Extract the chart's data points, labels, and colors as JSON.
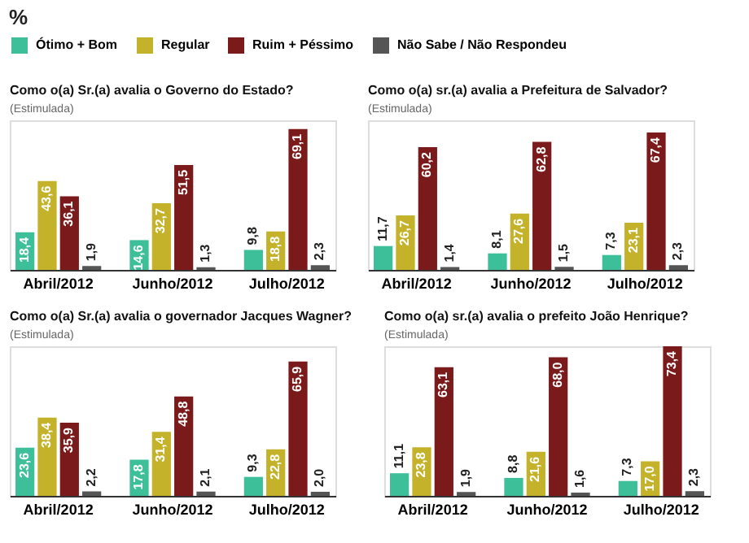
{
  "chart_data": [
    {
      "type": "bar",
      "title": "Como o(a) Sr.(a) avalia o Governo do Estado?",
      "subtitle": "(Estimulada)",
      "annotations": [
        "%"
      ],
      "legend": "top",
      "categories": [
        "Abril/2012",
        "Junho/2012",
        "Julho/2012"
      ],
      "series": [
        {
          "name": "Ótimo + Bom",
          "color": "#3dbf9a",
          "values": [
            18.4,
            14.6,
            9.8
          ],
          "value_labels": [
            "18,4",
            "14,6",
            "9,8"
          ]
        },
        {
          "name": "Regular",
          "color": "#c4b22a",
          "values": [
            43.6,
            32.7,
            18.8
          ],
          "value_labels": [
            "43,6",
            "32,7",
            "18,8"
          ]
        },
        {
          "name": "Ruim + Péssimo",
          "color": "#7a1a1a",
          "values": [
            36.1,
            51.5,
            69.1
          ],
          "value_labels": [
            "36,1",
            "51,5",
            "69,1"
          ]
        },
        {
          "name": "Não Sabe / Não Respondeu",
          "color": "#555555",
          "values": [
            1.9,
            1.3,
            2.3
          ],
          "value_labels": [
            "1,9",
            "1,3",
            "2,3"
          ]
        }
      ]
    },
    {
      "type": "bar",
      "title": "Como o(a) sr.(a) avalia a Prefeitura de Salvador?",
      "subtitle": "(Estimulada)",
      "categories": [
        "Abril/2012",
        "Junho/2012",
        "Julho/2012"
      ],
      "series": [
        {
          "color": "#3dbf9a",
          "values": [
            11.7,
            8.1,
            7.3
          ],
          "value_labels": [
            "11,7",
            "8,1",
            "7,3"
          ]
        },
        {
          "color": "#c4b22a",
          "values": [
            26.7,
            27.6,
            23.1
          ],
          "value_labels": [
            "26,7",
            "27,6",
            "23,1"
          ]
        },
        {
          "color": "#7a1a1a",
          "values": [
            60.2,
            62.8,
            67.4
          ],
          "value_labels": [
            "60,2",
            "62,8",
            "67,4"
          ]
        },
        {
          "color": "#555555",
          "values": [
            1.4,
            1.5,
            2.3
          ],
          "value_labels": [
            "1,4",
            "1,5",
            "2,3"
          ]
        }
      ]
    },
    {
      "type": "bar",
      "title": "Como o(a) Sr.(a) avalia o governador Jacques Wagner?",
      "subtitle": "(Estimulada)",
      "categories": [
        "Abril/2012",
        "Junho/2012",
        "Julho/2012"
      ],
      "series": [
        {
          "color": "#3dbf9a",
          "values": [
            23.6,
            17.8,
            9.3
          ],
          "value_labels": [
            "23,6",
            "17,8",
            "9,3"
          ]
        },
        {
          "color": "#c4b22a",
          "values": [
            38.4,
            31.4,
            22.8
          ],
          "value_labels": [
            "38,4",
            "31,4",
            "22,8"
          ]
        },
        {
          "color": "#7a1a1a",
          "values": [
            35.9,
            48.8,
            65.9
          ],
          "value_labels": [
            "35,9",
            "48,8",
            "65,9"
          ]
        },
        {
          "color": "#555555",
          "values": [
            2.2,
            2.1,
            2.0
          ],
          "value_labels": [
            "2,2",
            "2,1",
            "2,0"
          ]
        }
      ]
    },
    {
      "type": "bar",
      "title": "Como o(a) sr.(a) avalia o prefeito João Henrique?",
      "subtitle": "(Estimulada)",
      "categories": [
        "Abril/2012",
        "Junho/2012",
        "Julho/2012"
      ],
      "series": [
        {
          "color": "#3dbf9a",
          "values": [
            11.1,
            8.8,
            7.3
          ],
          "value_labels": [
            "11,1",
            "8,8",
            "7,3"
          ]
        },
        {
          "color": "#c4b22a",
          "values": [
            23.8,
            21.6,
            17.0
          ],
          "value_labels": [
            "23,8",
            "21,6",
            "17,0"
          ]
        },
        {
          "color": "#7a1a1a",
          "values": [
            63.1,
            68.0,
            73.4
          ],
          "value_labels": [
            "63,1",
            "68,0",
            "73,4"
          ]
        },
        {
          "color": "#555555",
          "values": [
            1.9,
            1.6,
            2.3
          ],
          "value_labels": [
            "1,9",
            "1,6",
            "2,3"
          ]
        }
      ]
    }
  ]
}
